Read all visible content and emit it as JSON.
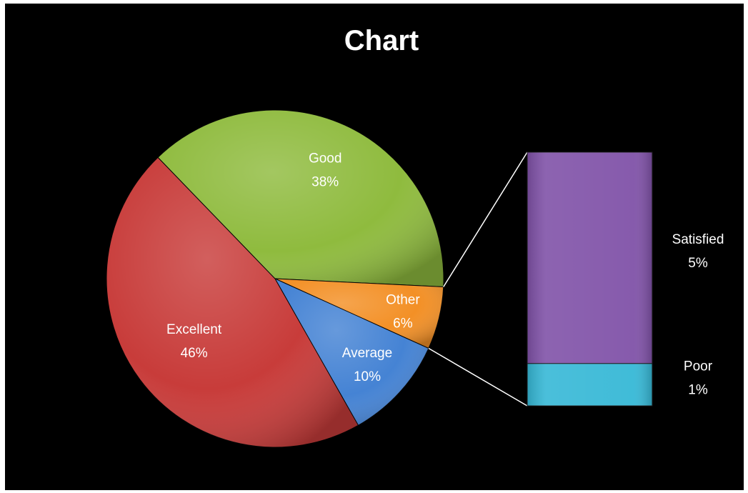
{
  "chart_data": {
    "type": "pie",
    "title": "Chart",
    "slices": [
      {
        "label": "Excellent",
        "value": 46,
        "display": "46%",
        "color": "#c83c3a"
      },
      {
        "label": "Good",
        "value": 38,
        "display": "38%",
        "color": "#8fbb3e"
      },
      {
        "label": "Other",
        "value": 6,
        "display": "6%",
        "color": "#f39026"
      },
      {
        "label": "Average",
        "value": 10,
        "display": "10%",
        "color": "#4583d4"
      }
    ],
    "breakdown": {
      "of": "Other",
      "type": "stacked-bar",
      "segments": [
        {
          "label": "Satisfied",
          "value": 5,
          "display": "5%",
          "color": "#8052a8"
        },
        {
          "label": "Poor",
          "value": 1,
          "display": "1%",
          "color": "#36b8d6"
        }
      ]
    },
    "background_color": "#000000",
    "text_color": "#ffffff",
    "legend": "none"
  }
}
